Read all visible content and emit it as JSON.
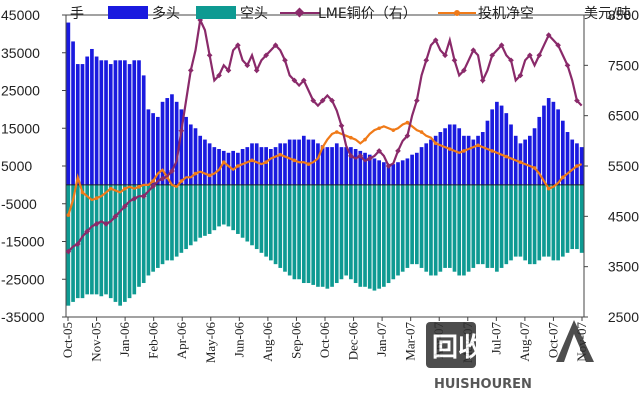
{
  "chart_data": {
    "type": "bar+line",
    "left_axis": {
      "unit": "手",
      "min": -35000,
      "max": 45000,
      "ticks": [
        45000,
        35000,
        25000,
        15000,
        5000,
        -5000,
        -15000,
        -25000,
        -35000
      ],
      "tick_labels": [
        "45000",
        "35000",
        "25000",
        "15000",
        "5000",
        "-5000",
        "-15000",
        "-25000",
        "-35000"
      ]
    },
    "right_axis": {
      "unit": "美元/吨",
      "min": 2500,
      "max": 8500,
      "ticks": [
        8500,
        7500,
        6500,
        5500,
        4500,
        3500,
        2500
      ],
      "tick_labels": [
        "8500",
        "7500",
        "6500",
        "5500",
        "4500",
        "3500",
        "2500"
      ]
    },
    "x_tick_labels": [
      "Oct-05",
      "Nov-05",
      "Jan-06",
      "Feb-06",
      "Apr-06",
      "May-06",
      "Jun-06",
      "Aug-06",
      "Sep-06",
      "Oct-06",
      "Dec-06",
      "Jan-07",
      "Mar-07",
      "Apr-07",
      "May-07",
      "Jul-07",
      "Aug-07",
      "Oct-07",
      "Nov-07"
    ],
    "series": [
      {
        "name": "多头",
        "kind": "bar",
        "axis": "left",
        "color": "#1a1adf",
        "values": [
          43000,
          38000,
          32000,
          32000,
          34000,
          36000,
          34000,
          33000,
          33000,
          32000,
          33000,
          33000,
          33000,
          32000,
          33000,
          33000,
          29000,
          20000,
          19000,
          18000,
          22000,
          23000,
          24000,
          22000,
          20000,
          18000,
          16000,
          15000,
          13000,
          12000,
          11000,
          10000,
          9500,
          9000,
          8500,
          9000,
          8500,
          9500,
          10000,
          11000,
          11000,
          10000,
          10000,
          9500,
          10000,
          11000,
          11000,
          12000,
          12000,
          12000,
          13000,
          12000,
          12000,
          11000,
          10500,
          10000,
          10000,
          11000,
          10000,
          10000,
          10000,
          9500,
          9000,
          8500,
          8000,
          7000,
          6500,
          6000,
          5500,
          5500,
          6000,
          6500,
          7000,
          8000,
          8500,
          10000,
          11000,
          12000,
          13000,
          14000,
          15000,
          16000,
          16000,
          15000,
          13000,
          13000,
          12000,
          13000,
          14000,
          17000,
          20000,
          22000,
          21000,
          19000,
          16000,
          13000,
          11000,
          12000,
          13000,
          15000,
          18000,
          21000,
          23000,
          22000,
          20000,
          17000,
          14000,
          12000,
          11000,
          10000
        ]
      },
      {
        "name": "空头",
        "kind": "bar",
        "axis": "left",
        "color": "#0e9a92",
        "values": [
          -32000,
          -31000,
          -30000,
          -30000,
          -29000,
          -29000,
          -29000,
          -29500,
          -29000,
          -30000,
          -31000,
          -32000,
          -31000,
          -30000,
          -29000,
          -27000,
          -26000,
          -24000,
          -23000,
          -22000,
          -21000,
          -20000,
          -20000,
          -19000,
          -18000,
          -17000,
          -16000,
          -15000,
          -14000,
          -13500,
          -13000,
          -12000,
          -11000,
          -10500,
          -11000,
          -12000,
          -13000,
          -14000,
          -15000,
          -16000,
          -17000,
          -18000,
          -19000,
          -20000,
          -21000,
          -22000,
          -23000,
          -24000,
          -25000,
          -25000,
          -26000,
          -26000,
          -26500,
          -27000,
          -27000,
          -27500,
          -27000,
          -26000,
          -25000,
          -24000,
          -25000,
          -26000,
          -27000,
          -27000,
          -27500,
          -28000,
          -27500,
          -27000,
          -26000,
          -25000,
          -24000,
          -23000,
          -22000,
          -21000,
          -21000,
          -22000,
          -23000,
          -24000,
          -24000,
          -23000,
          -22000,
          -22000,
          -23000,
          -24000,
          -24000,
          -23000,
          -22000,
          -21000,
          -21000,
          -22000,
          -22000,
          -23000,
          -22000,
          -21000,
          -20000,
          -19000,
          -19000,
          -20000,
          -21000,
          -21000,
          -20000,
          -19000,
          -19000,
          -20000,
          -20000,
          -19000,
          -18000,
          -17000,
          -17000,
          -18000
        ]
      },
      {
        "name": "LME铜价（右）",
        "kind": "line",
        "axis": "right",
        "color": "#8a2a6a",
        "marker": "diamond",
        "values": [
          3800,
          3900,
          3950,
          4100,
          4200,
          4300,
          4350,
          4400,
          4350,
          4400,
          4500,
          4600,
          4700,
          4800,
          4850,
          4900,
          4900,
          5000,
          5100,
          5200,
          5250,
          5300,
          5400,
          5600,
          6200,
          6800,
          7400,
          7800,
          8400,
          8200,
          7700,
          7200,
          7300,
          7500,
          7400,
          7800,
          7900,
          7600,
          7500,
          7700,
          7400,
          7600,
          7700,
          7800,
          7900,
          7800,
          7600,
          7300,
          7200,
          7100,
          7200,
          7000,
          6800,
          6700,
          6800,
          6900,
          6800,
          6600,
          6300,
          5900,
          5700,
          5650,
          5700,
          5600,
          5650,
          5700,
          5800,
          5700,
          5500,
          5550,
          5800,
          6000,
          6100,
          6500,
          6800,
          7300,
          7600,
          7900,
          8000,
          7800,
          7700,
          8000,
          7600,
          7300,
          7400,
          7600,
          7800,
          7700,
          7200,
          7400,
          7700,
          7800,
          7900,
          7700,
          7600,
          7200,
          7300,
          7600,
          7700,
          7500,
          7700,
          7900,
          8100,
          8000,
          7900,
          7700,
          7500,
          7200,
          6800,
          6700
        ]
      },
      {
        "name": "投机净空",
        "kind": "line",
        "axis": "left",
        "color": "#f07a18",
        "marker": "dot",
        "values": [
          -8000,
          -4000,
          2000,
          -2000,
          -3000,
          -4000,
          -3500,
          -3000,
          -2000,
          -1000,
          -1500,
          -2000,
          -1000,
          -500,
          -1000,
          -500,
          0,
          0,
          1000,
          3000,
          4000,
          2000,
          0,
          -500,
          1000,
          2000,
          2000,
          3000,
          3500,
          3000,
          2500,
          3000,
          4000,
          6000,
          5000,
          4000,
          5000,
          5500,
          6000,
          6500,
          6000,
          5500,
          6000,
          7000,
          7500,
          8000,
          7500,
          7000,
          6500,
          6000,
          6000,
          5500,
          6000,
          7000,
          10000,
          12000,
          13500,
          14000,
          13500,
          13000,
          12500,
          12000,
          11000,
          12000,
          13500,
          14500,
          15000,
          15500,
          15000,
          14500,
          15000,
          16000,
          16500,
          15500,
          14500,
          14000,
          13000,
          12500,
          11000,
          10500,
          10000,
          9500,
          9000,
          8500,
          9000,
          9500,
          10000,
          10500,
          10000,
          9500,
          9000,
          8500,
          8000,
          7500,
          7000,
          6500,
          6000,
          5500,
          5000,
          4500,
          3000,
          1000,
          -1000,
          -500,
          500,
          2000,
          3000,
          4000,
          5000,
          5500
        ]
      }
    ],
    "legend_position": "top"
  },
  "watermark": {
    "brand": "回收",
    "domain": "HUISHOUREN"
  }
}
